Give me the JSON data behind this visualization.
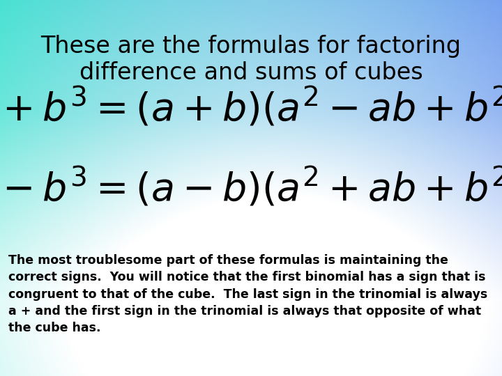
{
  "title_line1": "These are the formulas for factoring",
  "title_line2": "difference and sums of cubes",
  "body_text": "The most troublesome part of these formulas is maintaining the\ncorrect signs.  You will notice that the first binomial has a sign that is\ncongruent to that of the cube.  The last sign in the trinomial is always\na + and the first sign in the trinomial is always that opposite of what\nthe cube has.",
  "title_fontsize": 24,
  "formula_fontsize": 40,
  "body_fontsize": 12.5,
  "teal": [
    64,
    224,
    208
  ],
  "blue": [
    100,
    149,
    237
  ],
  "white": [
    255,
    255,
    255
  ]
}
